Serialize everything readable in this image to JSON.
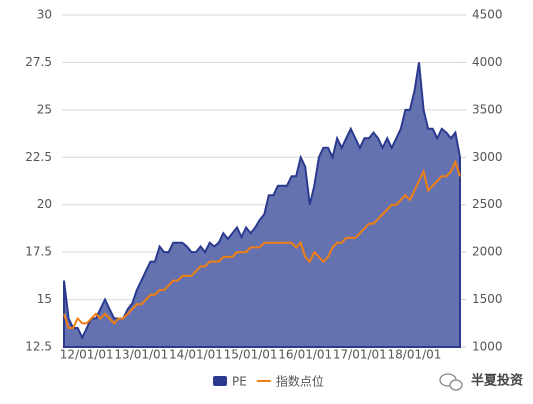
{
  "chart_data": {
    "type": "area-line",
    "categories": [
      null,
      null,
      null,
      null,
      null,
      "12/01/01",
      null,
      null,
      null,
      null,
      null,
      null,
      null,
      null,
      null,
      null,
      null,
      "13/01/01",
      null,
      null,
      null,
      null,
      null,
      null,
      null,
      null,
      null,
      null,
      null,
      "14/01/01",
      null,
      null,
      null,
      null,
      null,
      null,
      null,
      null,
      null,
      null,
      null,
      "15/01/01",
      null,
      null,
      null,
      null,
      null,
      null,
      null,
      null,
      null,
      null,
      null,
      "16/01/01",
      null,
      null,
      null,
      null,
      null,
      null,
      null,
      null,
      null,
      null,
      null,
      "17/01/01",
      null,
      null,
      null,
      null,
      null,
      null,
      null,
      null,
      null,
      null,
      null,
      "18/01/01",
      null,
      null,
      null,
      null,
      null,
      null,
      null,
      null,
      null,
      null
    ],
    "series": [
      {
        "name": "PE",
        "color": "#2b3a8f",
        "fill": "#6572b0",
        "values": [
          16,
          14,
          13.5,
          13.5,
          13,
          13.5,
          14,
          14,
          14.5,
          15,
          14.5,
          14,
          14,
          14,
          14.5,
          14.8,
          15.5,
          16,
          16.5,
          17,
          17,
          17.8,
          17.5,
          17.5,
          18,
          18,
          18,
          17.8,
          17.5,
          17.5,
          17.8,
          17.5,
          18,
          17.8,
          18,
          18.5,
          18.2,
          18.5,
          18.8,
          18.3,
          18.8,
          18.5,
          18.8,
          19.2,
          19.5,
          20.5,
          20.5,
          21,
          21,
          21,
          21.5,
          21.5,
          22.5,
          22,
          20,
          21,
          22.5,
          23,
          23,
          22.5,
          23.5,
          23,
          23.5,
          24,
          23.5,
          23,
          23.5,
          23.5,
          23.8,
          23.5,
          23,
          23.5,
          23,
          23.5,
          24,
          25,
          25,
          26,
          27.5,
          25,
          24,
          24,
          23.5,
          24,
          23.8,
          23.5,
          23.8,
          22.5
        ]
      },
      {
        "name": "指数点位",
        "color": "#f07f13",
        "axis": "y2",
        "values": [
          1350,
          1200,
          1200,
          1300,
          1250,
          1250,
          1300,
          1350,
          1300,
          1350,
          1300,
          1250,
          1300,
          1300,
          1350,
          1400,
          1450,
          1450,
          1500,
          1550,
          1550,
          1600,
          1600,
          1650,
          1700,
          1700,
          1750,
          1750,
          1750,
          1800,
          1850,
          1850,
          1900,
          1900,
          1900,
          1950,
          1950,
          1950,
          2000,
          2000,
          2000,
          2050,
          2050,
          2050,
          2100,
          2100,
          2100,
          2100,
          2100,
          2100,
          2100,
          2050,
          2100,
          1950,
          1900,
          2000,
          1950,
          1900,
          1950,
          2050,
          2100,
          2100,
          2150,
          2150,
          2150,
          2200,
          2250,
          2300,
          2300,
          2350,
          2400,
          2450,
          2500,
          2500,
          2550,
          2600,
          2550,
          2650,
          2750,
          2850,
          2650,
          2700,
          2750,
          2800,
          2800,
          2850,
          2950,
          2800
        ]
      }
    ],
    "ylim": [
      12.5,
      30
    ],
    "yticks": [
      12.5,
      15,
      17.5,
      20,
      22.5,
      25,
      27.5,
      30
    ],
    "y2lim": [
      1000,
      4500
    ],
    "y2ticks": [
      1000,
      1500,
      2000,
      2500,
      3000,
      3500,
      4000,
      4500
    ],
    "grid": true,
    "legend": "bottom",
    "watermark": "半夏投资"
  }
}
